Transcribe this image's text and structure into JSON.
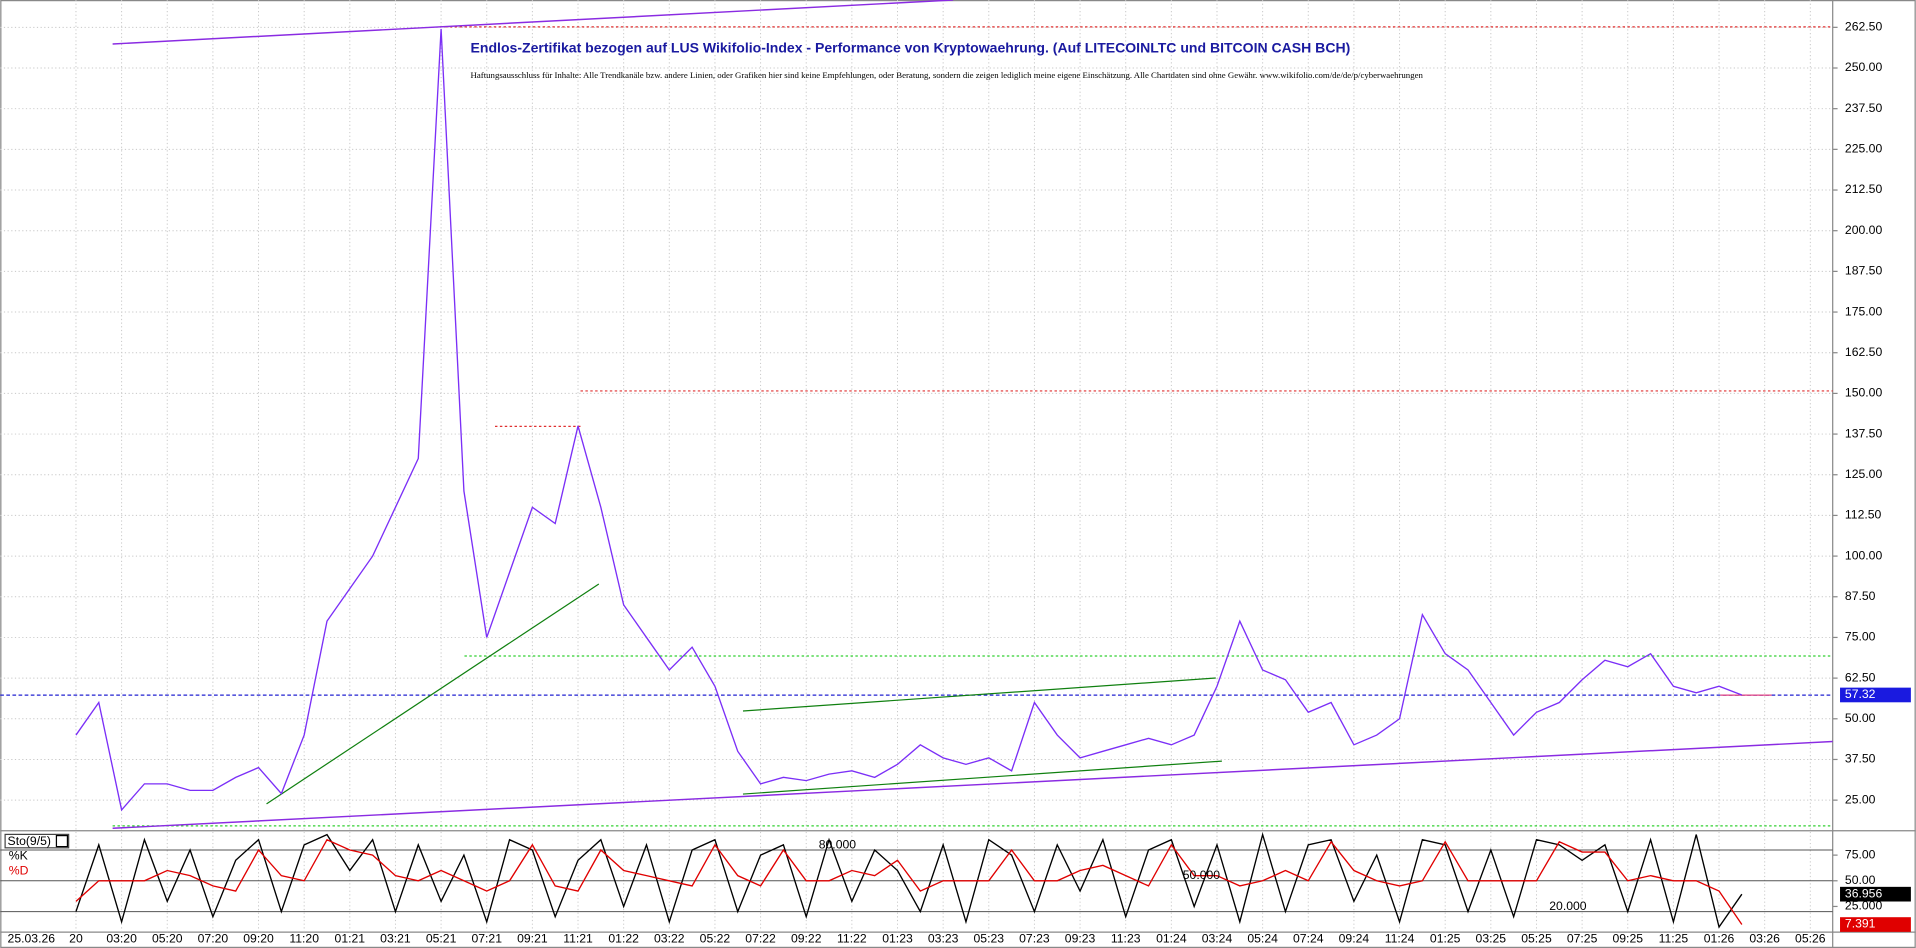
{
  "chart_data": [
    {
      "type": "line",
      "title": "Endlos-Zertifikat bezogen auf LUS Wikifolio-Index - Performance von Kryptowaehrung. (Auf LITECOINLTC und BITCOIN CASH BCH)",
      "subtitle": "Haftungsausschluss für Inhalte: Alle Trendkanäle bzw. andere Linien, oder Grafiken hier sind keine Empfehlungen, oder Beratung, sondern die zeigen lediglich meine eigene Einschätzung. Alle Chartdaten sind ohne Gewähr.  www.wikifolio.com/de/de/p/cyberwaehrungen",
      "date_label": "25.03.26",
      "categories": [
        "20",
        null,
        "03:20",
        null,
        "05:20",
        null,
        "07:20",
        null,
        "09:20",
        null,
        "11:20",
        null,
        "01:21",
        null,
        "03:21",
        null,
        "05:21",
        null,
        "07:21",
        null,
        "09:21",
        null,
        "11:21",
        null,
        "01:22",
        null,
        "03:22",
        null,
        "05:22",
        null,
        "07:22",
        null,
        "09:22",
        null,
        "11:22",
        null,
        "01:23",
        null,
        "03:23",
        null,
        "05:23",
        null,
        "07:23",
        null,
        "09:23",
        null,
        "11:23",
        null,
        "01:24",
        null,
        "03:24",
        null,
        "05:24",
        null,
        "07:24",
        null,
        "09:24",
        null,
        "11:24",
        null,
        "01:25",
        null,
        "03:25",
        null,
        "05:25",
        null,
        "07:25",
        null,
        "09:25",
        null,
        "11:25",
        null,
        "01:26",
        null,
        "03:26",
        null,
        "05:26"
      ],
      "series": [
        {
          "color": "#7b2ff7",
          "values": [
            45,
            55,
            22,
            30,
            30,
            28,
            28,
            32,
            35,
            27,
            45,
            80,
            90,
            100,
            115,
            130,
            262,
            120,
            75,
            95,
            115,
            110,
            140,
            115,
            85,
            75,
            65,
            72,
            60,
            40,
            30,
            32,
            31,
            33,
            34,
            32,
            36,
            42,
            38,
            36,
            38,
            34,
            55,
            45,
            38,
            40,
            42,
            44,
            42,
            45,
            60,
            80,
            65,
            62,
            52,
            55,
            42,
            45,
            50,
            82,
            70,
            65,
            55,
            45,
            52,
            55,
            62,
            68,
            66,
            70,
            60,
            58,
            60,
            57.32,
            null,
            null,
            null
          ]
        }
      ],
      "last_value": 57.32,
      "ylim": [
        15.6,
        270.9
      ],
      "yticks": [
        {
          "value": 25,
          "label": "25.00"
        },
        {
          "value": 37.5,
          "label": "37.50"
        },
        {
          "value": 50,
          "label": "50.00"
        },
        {
          "value": 62.5,
          "label": "62.50"
        },
        {
          "value": 75,
          "label": "75.00"
        },
        {
          "value": 87.5,
          "label": "87.50"
        },
        {
          "value": 100,
          "label": "100.00"
        },
        {
          "value": 112.5,
          "label": "112.50"
        },
        {
          "value": 125,
          "label": "125.00"
        },
        {
          "value": 137.5,
          "label": "137.50"
        },
        {
          "value": 150,
          "label": "150.00"
        },
        {
          "value": 162.5,
          "label": "162.50"
        },
        {
          "value": 175,
          "label": "175.00"
        },
        {
          "value": 187.5,
          "label": "187.50"
        },
        {
          "value": 200,
          "label": "200.00"
        },
        {
          "value": 212.5,
          "label": "212.50"
        },
        {
          "value": 225,
          "label": "225.00"
        },
        {
          "value": 237.5,
          "label": "237.50"
        },
        {
          "value": 250,
          "label": "250.00"
        },
        {
          "value": 262.5,
          "label": "262.50"
        }
      ],
      "grid": true
    },
    {
      "type": "line",
      "legend_title": "Sto(9/5)",
      "series": [
        {
          "name": "%K",
          "color": "#000000",
          "values": [
            20,
            85,
            10,
            90,
            30,
            80,
            15,
            70,
            90,
            20,
            85,
            95,
            60,
            90,
            20,
            85,
            30,
            75,
            10,
            90,
            80,
            15,
            70,
            90,
            25,
            85,
            10,
            80,
            90,
            20,
            75,
            85,
            15,
            90,
            30,
            80,
            60,
            20,
            85,
            10,
            90,
            75,
            20,
            85,
            40,
            90,
            15,
            80,
            90,
            25,
            85,
            10,
            95,
            20,
            85,
            90,
            30,
            75,
            10,
            90,
            85,
            20,
            80,
            15,
            90,
            85,
            70,
            85,
            20,
            90,
            10,
            95,
            5,
            36.956,
            null,
            null,
            null
          ],
          "last_value": 36.956
        },
        {
          "name": "%D",
          "color": "#e00000",
          "values": [
            30,
            50,
            50,
            50,
            60,
            55,
            45,
            40,
            80,
            55,
            50,
            90,
            80,
            75,
            55,
            50,
            60,
            50,
            40,
            50,
            85,
            45,
            40,
            80,
            60,
            55,
            50,
            45,
            85,
            55,
            45,
            80,
            50,
            50,
            60,
            55,
            70,
            40,
            50,
            50,
            50,
            80,
            50,
            50,
            60,
            65,
            55,
            45,
            85,
            55,
            55,
            45,
            50,
            60,
            50,
            88,
            60,
            50,
            45,
            50,
            88,
            50,
            50,
            50,
            50,
            88,
            78,
            78,
            50,
            55,
            50,
            50,
            40,
            7.391,
            null,
            null,
            null
          ],
          "last_value": 7.391
        }
      ],
      "ylim": [
        0,
        95.2
      ],
      "yticks": [
        {
          "value": 75,
          "label": "75.00"
        },
        {
          "value": 50,
          "label": "50.00"
        },
        {
          "value": 25,
          "label": "25.000"
        }
      ],
      "levels": [
        {
          "value": 80,
          "label": "80.000"
        },
        {
          "value": 50,
          "label": "50.000"
        },
        {
          "value": 20,
          "label": "20.000"
        }
      ]
    }
  ]
}
